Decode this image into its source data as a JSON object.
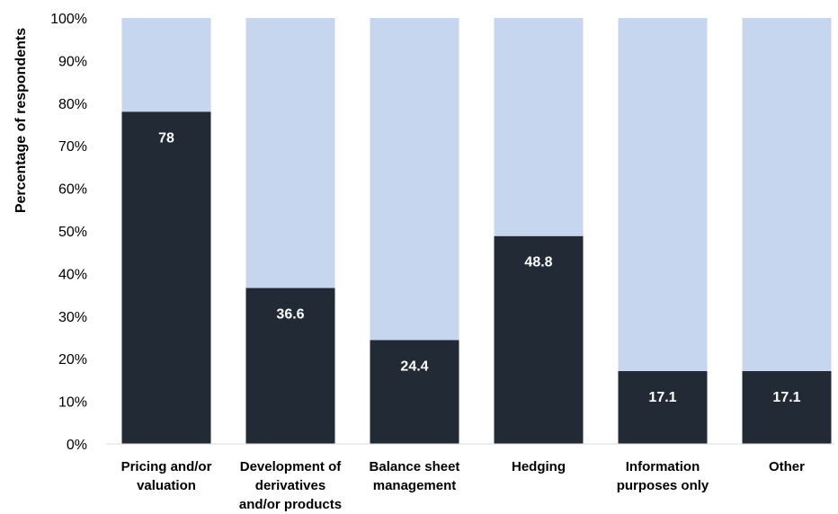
{
  "chart_data": {
    "type": "bar",
    "stacked": true,
    "ylabel": "Percentage of respondents",
    "ylim": [
      0,
      100
    ],
    "y_ticks": [
      "0%",
      "10%",
      "20%",
      "30%",
      "40%",
      "50%",
      "60%",
      "70%",
      "80%",
      "90%",
      "100%"
    ],
    "categories": [
      [
        "Pricing and/or",
        "valuation"
      ],
      [
        "Development of",
        "derivatives",
        "and/or products"
      ],
      [
        "Balance sheet",
        "management"
      ],
      [
        "Hedging"
      ],
      [
        "Information",
        "purposes only"
      ],
      [
        "Other"
      ]
    ],
    "series": [
      {
        "values": [
          78,
          36.6,
          24.4,
          48.8,
          17.1,
          17.1
        ],
        "color": "#222a35"
      },
      {
        "values": [
          22,
          63.4,
          75.6,
          51.2,
          82.9,
          82.9
        ],
        "color": "#c5d6ee"
      }
    ],
    "data_labels": [
      "78",
      "36.6",
      "24.4",
      "48.8",
      "17.1",
      "17.1"
    ],
    "grid": false,
    "legend": "none"
  }
}
